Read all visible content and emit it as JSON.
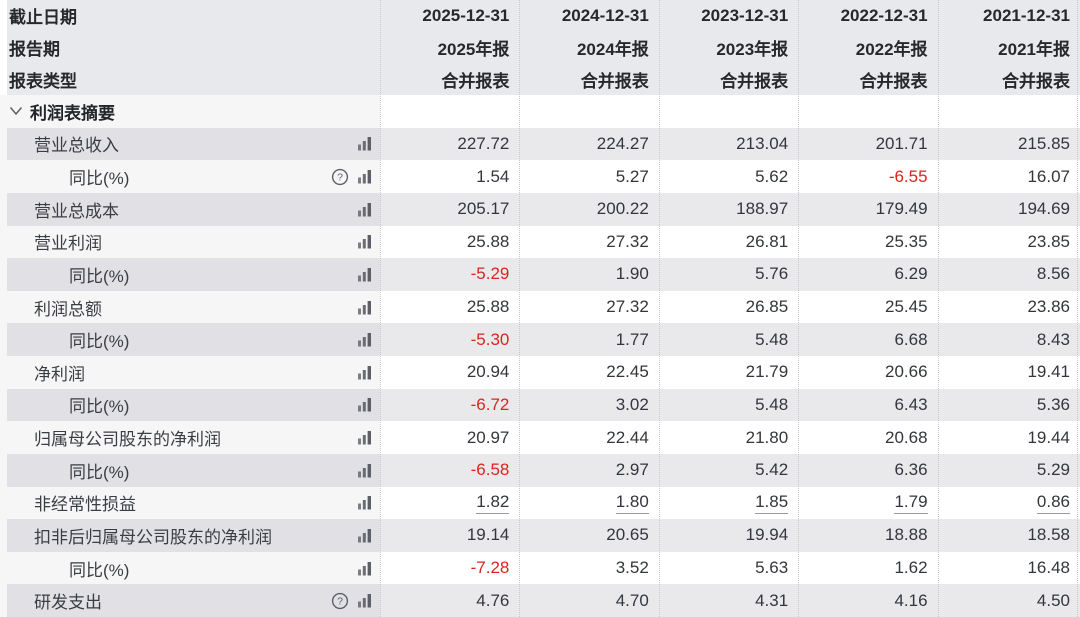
{
  "table": {
    "header": {
      "row_labels": [
        "截止日期",
        "报告期",
        "报表类型"
      ],
      "columns": [
        {
          "date": "2025-12-31",
          "period": "2025年报",
          "type": "合并报表"
        },
        {
          "date": "2024-12-31",
          "period": "2024年报",
          "type": "合并报表"
        },
        {
          "date": "2023-12-31",
          "period": "2023年报",
          "type": "合并报表"
        },
        {
          "date": "2022-12-31",
          "period": "2022年报",
          "type": "合并报表"
        },
        {
          "date": "2021-12-31",
          "period": "2021年报",
          "type": "合并报表"
        }
      ]
    },
    "rows": [
      {
        "type": "section",
        "label": "利润表摘要",
        "icons": [
          "chevron-down"
        ],
        "shade": "white",
        "values": [
          "",
          "",
          "",
          "",
          ""
        ]
      },
      {
        "type": "main",
        "label": "营业总收入",
        "icons": [
          "bar-chart"
        ],
        "shade": "gray",
        "values": [
          "227.72",
          "224.27",
          "213.04",
          "201.71",
          "215.85"
        ]
      },
      {
        "type": "sub",
        "label": "同比(%)",
        "icons": [
          "question",
          "bar-chart"
        ],
        "shade": "white",
        "values": [
          "1.54",
          "5.27",
          "5.62",
          "-6.55",
          "16.07"
        ]
      },
      {
        "type": "main",
        "label": "营业总成本",
        "icons": [
          "bar-chart"
        ],
        "shade": "gray",
        "values": [
          "205.17",
          "200.22",
          "188.97",
          "179.49",
          "194.69"
        ]
      },
      {
        "type": "main",
        "label": "营业利润",
        "icons": [
          "bar-chart"
        ],
        "shade": "white",
        "values": [
          "25.88",
          "27.32",
          "26.81",
          "25.35",
          "23.85"
        ]
      },
      {
        "type": "sub",
        "label": "同比(%)",
        "icons": [
          "bar-chart"
        ],
        "shade": "gray",
        "values": [
          "-5.29",
          "1.90",
          "5.76",
          "6.29",
          "8.56"
        ]
      },
      {
        "type": "main",
        "label": "利润总额",
        "icons": [
          "bar-chart"
        ],
        "shade": "white",
        "values": [
          "25.88",
          "27.32",
          "26.85",
          "25.45",
          "23.86"
        ]
      },
      {
        "type": "sub",
        "label": "同比(%)",
        "icons": [
          "bar-chart"
        ],
        "shade": "gray",
        "values": [
          "-5.30",
          "1.77",
          "5.48",
          "6.68",
          "8.43"
        ]
      },
      {
        "type": "main",
        "label": "净利润",
        "icons": [
          "bar-chart"
        ],
        "shade": "white",
        "values": [
          "20.94",
          "22.45",
          "21.79",
          "20.66",
          "19.41"
        ]
      },
      {
        "type": "sub",
        "label": "同比(%)",
        "icons": [
          "bar-chart"
        ],
        "shade": "gray",
        "values": [
          "-6.72",
          "3.02",
          "5.48",
          "6.43",
          "5.36"
        ]
      },
      {
        "type": "main",
        "label": "归属母公司股东的净利润",
        "icons": [
          "bar-chart"
        ],
        "shade": "white",
        "values": [
          "20.97",
          "22.44",
          "21.80",
          "20.68",
          "19.44"
        ]
      },
      {
        "type": "sub",
        "label": "同比(%)",
        "icons": [
          "bar-chart"
        ],
        "shade": "gray",
        "values": [
          "-6.58",
          "2.97",
          "5.42",
          "6.36",
          "5.29"
        ]
      },
      {
        "type": "main",
        "label": "非经常性损益",
        "icons": [
          "bar-chart"
        ],
        "shade": "white",
        "underline": true,
        "values": [
          "1.82",
          "1.80",
          "1.85",
          "1.79",
          "0.86"
        ]
      },
      {
        "type": "main",
        "label": "扣非后归属母公司股东的净利润",
        "icons": [
          "bar-chart"
        ],
        "shade": "gray",
        "values": [
          "19.14",
          "20.65",
          "19.94",
          "18.88",
          "18.58"
        ]
      },
      {
        "type": "sub",
        "label": "同比(%)",
        "icons": [
          "bar-chart"
        ],
        "shade": "white",
        "values": [
          "-7.28",
          "3.52",
          "5.63",
          "1.62",
          "16.48"
        ]
      },
      {
        "type": "main",
        "label": "研发支出",
        "icons": [
          "question",
          "bar-chart"
        ],
        "shade": "gray",
        "values": [
          "4.76",
          "4.70",
          "4.31",
          "4.16",
          "4.50"
        ]
      }
    ],
    "colors": {
      "header_bg": "#e8e9ec",
      "row_gray": "#e9e9ec",
      "negative_value": "#d9251e",
      "text": "#33363b",
      "icon": "#5c6066",
      "separator": "#c7c7cd"
    }
  }
}
